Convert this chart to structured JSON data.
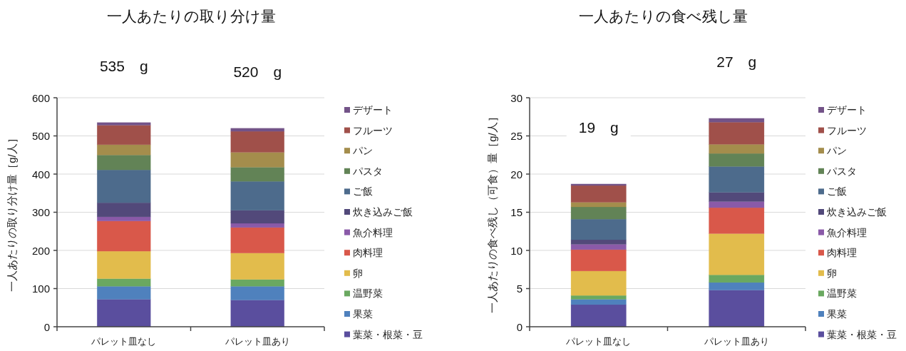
{
  "chart_data": [
    {
      "type": "bar",
      "stacked": true,
      "title": "一人あたりの取り分け量",
      "ylabel": "一人あたりの取り分け量［g/人］",
      "categories": [
        "パレット皿なし",
        "パレット皿あり"
      ],
      "ylim": [
        0,
        600
      ],
      "yticks": [
        0,
        100,
        200,
        300,
        400,
        500,
        600
      ],
      "grid": "y",
      "legend": "right",
      "annotations": [
        "535　g",
        "520　g"
      ],
      "series": [
        {
          "name": "葉菜・根菜・豆",
          "color": "#5a4e9e",
          "values": [
            72,
            70
          ]
        },
        {
          "name": "果菜",
          "color": "#4f81bd",
          "values": [
            34,
            36
          ]
        },
        {
          "name": "温野菜",
          "color": "#6aa860",
          "values": [
            20,
            18
          ]
        },
        {
          "name": "卵",
          "color": "#e2bc4c",
          "values": [
            72,
            69
          ]
        },
        {
          "name": "肉料理",
          "color": "#d9584a",
          "values": [
            79,
            67
          ]
        },
        {
          "name": "魚介料理",
          "color": "#8a5aa8",
          "values": [
            11,
            11
          ]
        },
        {
          "name": "炊き込みご飯",
          "color": "#52497a",
          "values": [
            37,
            34
          ]
        },
        {
          "name": "ご飯",
          "color": "#4d6b8c",
          "values": [
            86,
            76
          ]
        },
        {
          "name": "パスタ",
          "color": "#628356",
          "values": [
            39,
            37
          ]
        },
        {
          "name": "パン",
          "color": "#a48d4c",
          "values": [
            27,
            39
          ]
        },
        {
          "name": "フルーツ",
          "color": "#a0504a",
          "values": [
            51,
            55
          ]
        },
        {
          "name": "デザート",
          "color": "#735388",
          "values": [
            7,
            8
          ]
        }
      ]
    },
    {
      "type": "bar",
      "stacked": true,
      "title": "一人あたりの食べ残し量",
      "ylabel": "一人あたりの食べ残し（可食）量［g/人］",
      "categories": [
        "パレット皿なし",
        "パレット皿あり"
      ],
      "ylim": [
        0,
        30
      ],
      "yticks": [
        0,
        5,
        10,
        15,
        20,
        25,
        30
      ],
      "grid": "y",
      "legend": "right",
      "annotations": [
        "19　g",
        "27　g"
      ],
      "series": [
        {
          "name": "葉菜・根菜・豆",
          "color": "#5a4e9e",
          "values": [
            2.9,
            4.8
          ]
        },
        {
          "name": "果菜",
          "color": "#4f81bd",
          "values": [
            0.7,
            1.0
          ]
        },
        {
          "name": "温野菜",
          "color": "#6aa860",
          "values": [
            0.5,
            1.0
          ]
        },
        {
          "name": "卵",
          "color": "#e2bc4c",
          "values": [
            3.2,
            5.4
          ]
        },
        {
          "name": "肉料理",
          "color": "#d9584a",
          "values": [
            2.8,
            3.4
          ]
        },
        {
          "name": "魚介料理",
          "color": "#8a5aa8",
          "values": [
            0.7,
            0.8
          ]
        },
        {
          "name": "炊き込みご飯",
          "color": "#52497a",
          "values": [
            0.6,
            1.2
          ]
        },
        {
          "name": "ご飯",
          "color": "#4d6b8c",
          "values": [
            2.7,
            3.4
          ]
        },
        {
          "name": "パスタ",
          "color": "#628356",
          "values": [
            1.6,
            1.7
          ]
        },
        {
          "name": "パン",
          "color": "#a48d4c",
          "values": [
            0.6,
            1.2
          ]
        },
        {
          "name": "フルーツ",
          "color": "#a0504a",
          "values": [
            2.2,
            2.9
          ]
        },
        {
          "name": "デザート",
          "color": "#735388",
          "values": [
            0.2,
            0.5
          ]
        }
      ]
    }
  ]
}
